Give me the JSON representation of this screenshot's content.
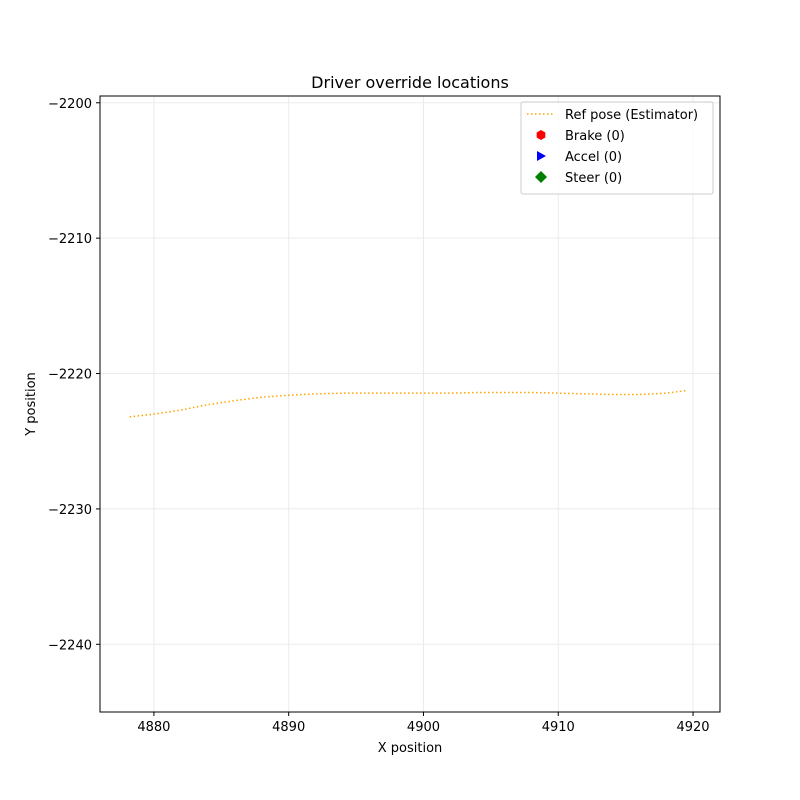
{
  "chart_data": {
    "type": "line",
    "title": "Driver override locations",
    "xlabel": "X position",
    "ylabel": "Y position",
    "xlim": [
      4876,
      4922
    ],
    "ylim": [
      -2245,
      -2199.5
    ],
    "xticks": [
      4880,
      4890,
      4900,
      4910,
      4920
    ],
    "yticks": [
      -2200,
      -2210,
      -2220,
      -2230,
      -2240
    ],
    "grid": true,
    "legend_position": "top-right",
    "series": [
      {
        "name": "Ref pose (Estimator)",
        "style": "dotted-line",
        "color": "#ffa500",
        "x": [
          4878.2,
          4880,
          4882,
          4884,
          4886,
          4888,
          4890,
          4892,
          4894,
          4896,
          4898,
          4900,
          4902,
          4904,
          4906,
          4908,
          4910,
          4912,
          4914,
          4916,
          4918,
          4919.6
        ],
        "y": [
          -2223.2,
          -2223.0,
          -2222.7,
          -2222.3,
          -2222.0,
          -2221.75,
          -2221.6,
          -2221.5,
          -2221.45,
          -2221.45,
          -2221.45,
          -2221.45,
          -2221.45,
          -2221.4,
          -2221.4,
          -2221.4,
          -2221.45,
          -2221.5,
          -2221.55,
          -2221.55,
          -2221.45,
          -2221.25
        ]
      },
      {
        "name": "Brake (0)",
        "style": "marker-hexagon",
        "color": "#ff0000",
        "x": [],
        "y": []
      },
      {
        "name": "Accel (0)",
        "style": "marker-triangle-right",
        "color": "#0000ff",
        "x": [],
        "y": []
      },
      {
        "name": "Steer (0)",
        "style": "marker-diamond",
        "color": "#008000",
        "x": [],
        "y": []
      }
    ]
  }
}
